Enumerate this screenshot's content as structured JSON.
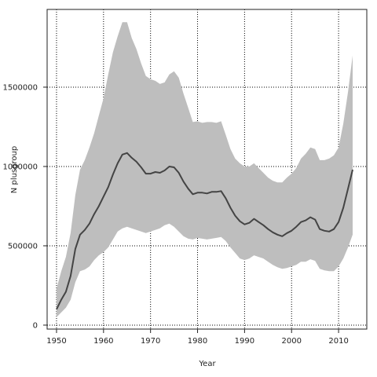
{
  "chart_data": {
    "type": "area",
    "title": "",
    "xlabel": "Year",
    "ylabel": "N plusgroup",
    "xlim": [
      1948,
      2016
    ],
    "ylim": [
      -25000,
      1990000
    ],
    "grid": true,
    "grid_style": "dotted",
    "x_ticks": [
      1950,
      1960,
      1970,
      1980,
      1990,
      2000,
      2010
    ],
    "x_tick_labels": [
      "1950",
      "1960",
      "1970",
      "1980",
      "1990",
      "2000",
      "2010"
    ],
    "y_ticks": [
      0,
      500000,
      1000000,
      1500000
    ],
    "y_tick_labels": [
      "0",
      "500000",
      "1000000",
      "1500000"
    ],
    "colors": {
      "band": "#bebebe",
      "line": "#444444",
      "grid": "#000000"
    },
    "x": [
      1950,
      1951,
      1952,
      1953,
      1954,
      1955,
      1956,
      1957,
      1958,
      1959,
      1960,
      1961,
      1962,
      1963,
      1964,
      1965,
      1966,
      1967,
      1968,
      1969,
      1970,
      1971,
      1972,
      1973,
      1974,
      1975,
      1976,
      1977,
      1978,
      1979,
      1980,
      1981,
      1982,
      1983,
      1984,
      1985,
      1986,
      1987,
      1988,
      1989,
      1990,
      1991,
      1992,
      1993,
      1994,
      1995,
      1996,
      1997,
      1998,
      1999,
      2000,
      2001,
      2002,
      2003,
      2004,
      2005,
      2006,
      2007,
      2008,
      2009,
      2010,
      2011,
      2012,
      2013
    ],
    "series": [
      {
        "kind": "median",
        "values": [
          100000,
          160000,
          210000,
          310000,
          480000,
          570000,
          600000,
          640000,
          700000,
          750000,
          810000,
          870000,
          950000,
          1020000,
          1075000,
          1085000,
          1055000,
          1030000,
          995000,
          955000,
          955000,
          965000,
          960000,
          975000,
          1000000,
          995000,
          960000,
          905000,
          860000,
          825000,
          835000,
          835000,
          830000,
          840000,
          840000,
          845000,
          800000,
          740000,
          690000,
          655000,
          635000,
          645000,
          670000,
          650000,
          630000,
          605000,
          585000,
          570000,
          560000,
          580000,
          595000,
          620000,
          650000,
          660000,
          680000,
          665000,
          605000,
          595000,
          590000,
          605000,
          650000,
          740000,
          860000,
          980000
        ]
      },
      {
        "kind": "upper",
        "values": [
          230000,
          340000,
          430000,
          580000,
          820000,
          980000,
          1040000,
          1120000,
          1210000,
          1320000,
          1430000,
          1580000,
          1720000,
          1820000,
          1910000,
          1910000,
          1810000,
          1740000,
          1650000,
          1570000,
          1550000,
          1540000,
          1520000,
          1530000,
          1580000,
          1600000,
          1560000,
          1460000,
          1370000,
          1280000,
          1285000,
          1275000,
          1280000,
          1280000,
          1275000,
          1285000,
          1200000,
          1110000,
          1050000,
          1020000,
          1000000,
          1000000,
          1020000,
          990000,
          960000,
          930000,
          910000,
          900000,
          900000,
          930000,
          955000,
          990000,
          1050000,
          1080000,
          1120000,
          1110000,
          1040000,
          1040000,
          1050000,
          1070000,
          1120000,
          1270000,
          1470000,
          1700000
        ]
      },
      {
        "kind": "lower",
        "values": [
          50000,
          80000,
          110000,
          160000,
          270000,
          340000,
          350000,
          370000,
          410000,
          440000,
          460000,
          490000,
          540000,
          590000,
          610000,
          620000,
          610000,
          600000,
          590000,
          580000,
          590000,
          600000,
          610000,
          630000,
          640000,
          620000,
          590000,
          560000,
          545000,
          540000,
          550000,
          545000,
          540000,
          545000,
          550000,
          555000,
          530000,
          490000,
          455000,
          420000,
          410000,
          420000,
          440000,
          430000,
          420000,
          400000,
          380000,
          365000,
          355000,
          360000,
          370000,
          380000,
          400000,
          400000,
          415000,
          405000,
          355000,
          345000,
          340000,
          340000,
          370000,
          420000,
          490000,
          570000
        ]
      }
    ]
  }
}
